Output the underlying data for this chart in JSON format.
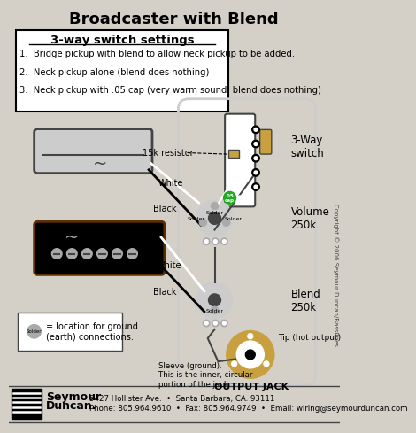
{
  "title": "Broadcaster with Blend",
  "bg_color": "#d4d0c8",
  "switch_settings_title": "3-way switch settings",
  "switch_settings": [
    "1.  Bridge pickup with blend to allow neck pickup to be added.",
    "2.  Neck pickup alone (blend does nothing)",
    "3.  Neck pickup with .05 cap (very warm sound. blend does nothing)"
  ],
  "label_3way": "3-Way\nswitch",
  "label_volume": "Volume\n250k",
  "label_blend": "Blend\n250k",
  "label_15k": "15k resistor",
  "label_output": "OUTPUT JACK",
  "label_tip": "Tip (hot output)",
  "label_sleeve": "Sleeve (ground).\nThis is the inner, circular\nportion of the jack",
  "label_solder": "= location for ground\n(earth) connections.",
  "footer_line1": "5427 Hollister Ave.  •  Santa Barbara, CA. 93111",
  "footer_line2": "Phone: 805.964.9610  •  Fax: 805.964.9749  •  Email: wiring@seymourduncan.com",
  "copyright": "Copyright © 2006 Seymour Duncan/Basslines",
  "white_color": "#ffffff",
  "black_color": "#000000",
  "gray_color": "#aaaaaa",
  "dark_gray": "#444444",
  "light_gray": "#cccccc",
  "green_color": "#22aa22",
  "tan_color": "#c8a040",
  "brown_color": "#5a3000"
}
